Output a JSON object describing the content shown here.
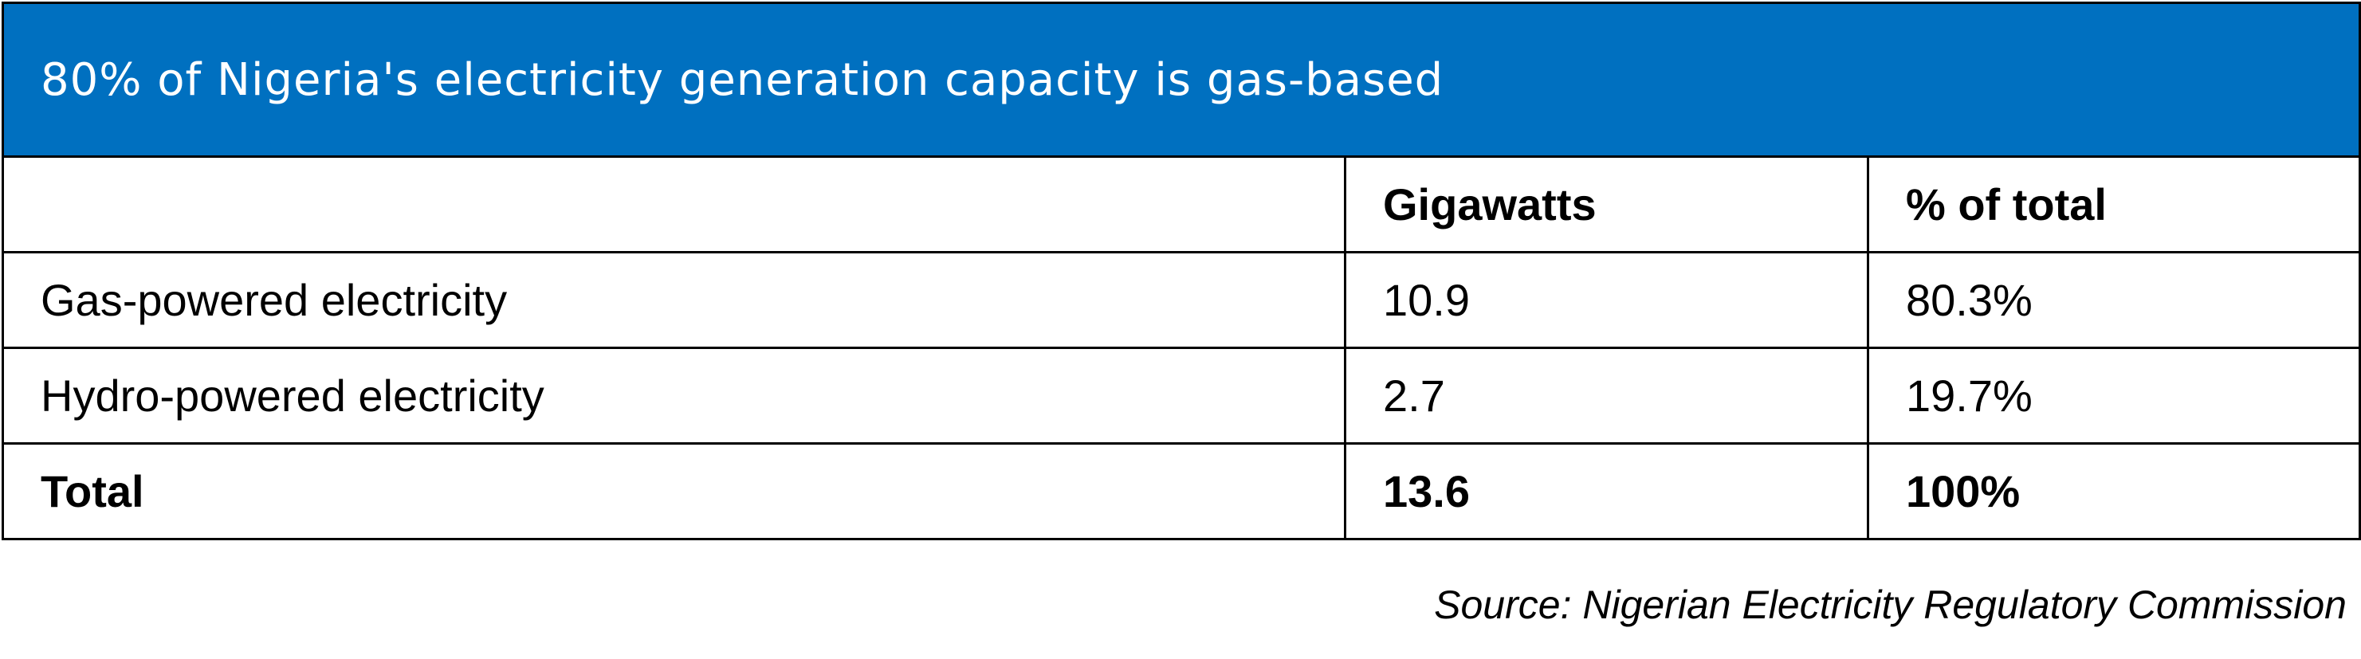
{
  "colors": {
    "header_bg": "#0070C0",
    "header_text": "#FFFFFF",
    "border": "#000000",
    "text": "#000000"
  },
  "chart_data": {
    "type": "table",
    "title": "80% of Nigeria's electricity generation capacity is gas-based",
    "columns": [
      "",
      "Gigawatts",
      "% of total"
    ],
    "rows": [
      [
        "Gas-powered electricity",
        "10.9",
        "80.3%"
      ],
      [
        "Hydro-powered electricity",
        "2.7",
        "19.7%"
      ],
      [
        "Total",
        "13.6",
        "100%"
      ]
    ],
    "values": {
      "gigawatts": [
        10.9,
        2.7,
        13.6
      ],
      "percent_of_total": [
        80.3,
        19.7,
        100
      ]
    },
    "source": "Source: Nigerian Electricity Regulatory Commission"
  }
}
